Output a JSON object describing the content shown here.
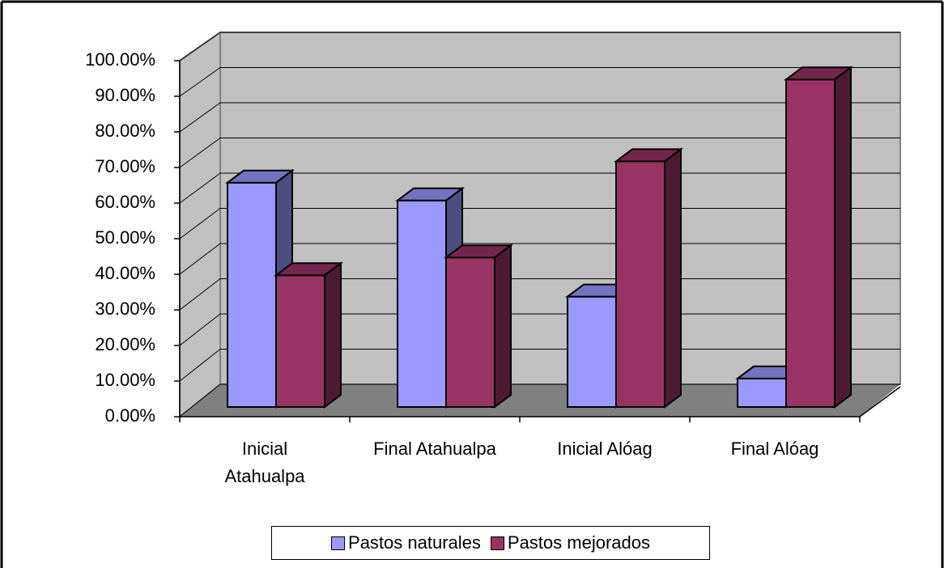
{
  "chart_data": {
    "type": "bar3d",
    "categories": [
      "Inicial Atahualpa",
      "Final Atahualpa",
      "Inicial Alóag",
      "Final Alóag"
    ],
    "series": [
      {
        "name": "Pastos naturales",
        "color": "#9999ff",
        "values": [
          63,
          58,
          31,
          8
        ]
      },
      {
        "name": "Pastos mejorados",
        "color": "#993366",
        "values": [
          37,
          42,
          69,
          92
        ]
      }
    ],
    "ylim": [
      0,
      100
    ],
    "yticks": [
      {
        "value": 0,
        "label": "0.00%"
      },
      {
        "value": 10,
        "label": "10.00%"
      },
      {
        "value": 20,
        "label": "20.00%"
      },
      {
        "value": 30,
        "label": "30.00%"
      },
      {
        "value": 40,
        "label": "40.00%"
      },
      {
        "value": 50,
        "label": "50.00%"
      },
      {
        "value": 60,
        "label": "60.00%"
      },
      {
        "value": 70,
        "label": "70.00%"
      },
      {
        "value": 80,
        "label": "80.00%"
      },
      {
        "value": 90,
        "label": "90.00%"
      },
      {
        "value": 100,
        "label": "100.00%"
      }
    ],
    "grid": true
  }
}
